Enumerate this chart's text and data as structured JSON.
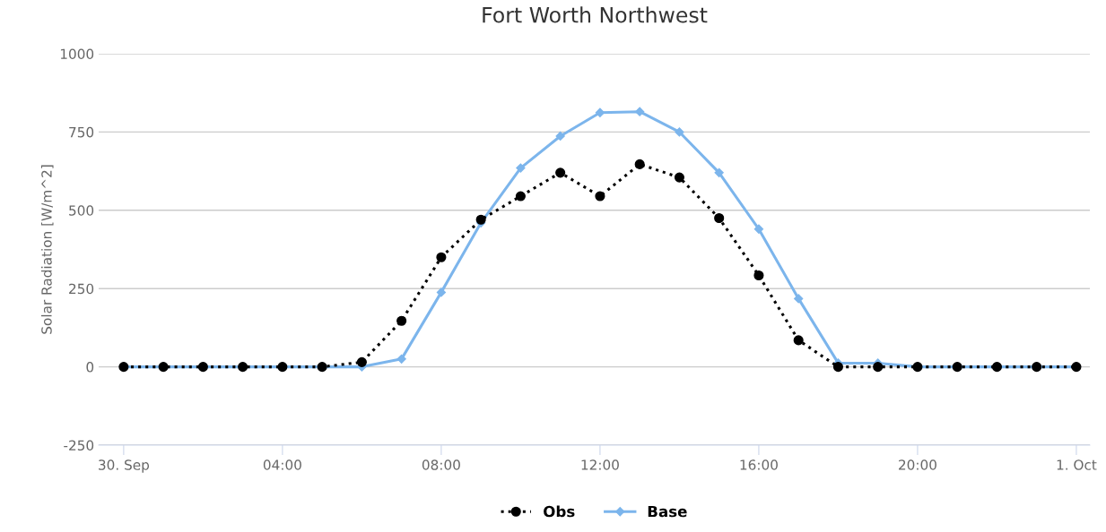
{
  "chart_data": {
    "type": "line",
    "title": "Fort Worth Northwest",
    "ylabel": "Solar Radiation [W/m^2]",
    "x": [
      0,
      1,
      2,
      3,
      4,
      5,
      6,
      7,
      8,
      9,
      10,
      11,
      12,
      13,
      14,
      15,
      16,
      17,
      18,
      19,
      20,
      21,
      22,
      23,
      24
    ],
    "series": [
      {
        "name": "Obs",
        "color": "#000000",
        "marker": "circle",
        "line_style": "dotted",
        "values": [
          0,
          0,
          0,
          0,
          0,
          0,
          15,
          147,
          350,
          470,
          545,
          620,
          545,
          647,
          605,
          475,
          292,
          85,
          0,
          0,
          0,
          0,
          0,
          0,
          0
        ]
      },
      {
        "name": "Base",
        "color": "#7cb5ec",
        "marker": "diamond",
        "line_style": "solid",
        "values": [
          0,
          0,
          0,
          0,
          0,
          0,
          0,
          25,
          238,
          460,
          635,
          737,
          812,
          815,
          750,
          620,
          440,
          218,
          12,
          12,
          0,
          0,
          0,
          0,
          0
        ]
      }
    ],
    "xlim": [
      -0.63,
      24.34
    ],
    "ylim": [
      -250,
      1000
    ],
    "xticks": [
      {
        "value": 0,
        "label": "30. Sep"
      },
      {
        "value": 4,
        "label": "04:00"
      },
      {
        "value": 8,
        "label": "08:00"
      },
      {
        "value": 12,
        "label": "12:00"
      },
      {
        "value": 16,
        "label": "16:00"
      },
      {
        "value": 20,
        "label": "20:00"
      },
      {
        "value": 24,
        "label": "1. Oct"
      }
    ],
    "yticks": [
      -250,
      0,
      250,
      500,
      750,
      1000
    ],
    "grid": "y",
    "legend": "bottom"
  }
}
